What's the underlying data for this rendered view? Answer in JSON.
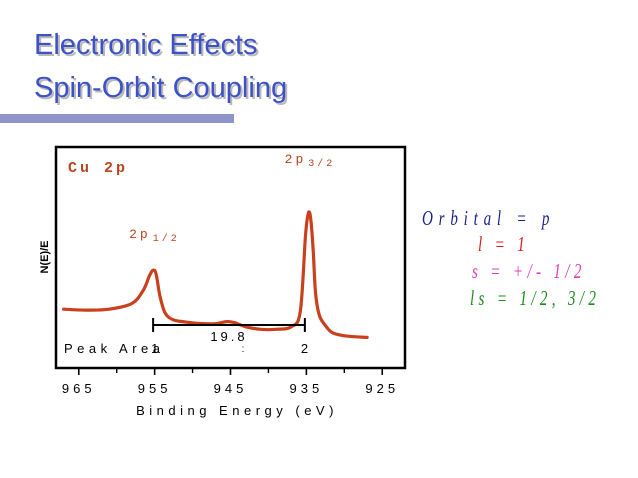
{
  "slide": {
    "title_line1": "Electronic Effects",
    "title_line2": "Spin-Orbit Coupling"
  },
  "notes": {
    "orbital": "Orbital = p",
    "l": "l = 1",
    "s": "s = +/- 1/2",
    "ls": "ls = 1/2, 3/2"
  },
  "colors": {
    "title": "#3d52c8",
    "trace": "#c8401c",
    "label": "#b8441e",
    "orbital": "#1a1f8c",
    "l": "#d81e1e",
    "s": "#d93cbf",
    "ls": "#1c8c1c"
  },
  "chart_data": {
    "type": "line",
    "title": "Cu 2p",
    "xlabel": "Binding Energy (eV)",
    "ylabel": "N(E)/E",
    "xlim": [
      968,
      922
    ],
    "x_reversed": true,
    "xticks": [
      965,
      955,
      945,
      935,
      925
    ],
    "xtick_labels": [
      "965",
      "955",
      "945",
      "935",
      "925"
    ],
    "ylim": [
      0,
      1
    ],
    "y_ticks_shown": false,
    "series": [
      {
        "x": [
          967,
          964,
          961,
          958,
          956.5,
          955.7,
          955.2,
          954.8,
          954.3,
          953.6,
          952.5,
          951,
          949,
          947,
          945.5,
          944.5,
          943,
          941,
          939,
          937,
          935.8,
          935.1,
          934.7,
          934.4,
          934.1,
          933.8,
          933.3,
          932.5,
          931.5,
          929.5,
          927
        ],
        "y": [
          0.179,
          0.174,
          0.179,
          0.212,
          0.289,
          0.372,
          0.406,
          0.383,
          0.256,
          0.155,
          0.117,
          0.105,
          0.096,
          0.095,
          0.107,
          0.101,
          0.077,
          0.062,
          0.062,
          0.077,
          0.166,
          0.615,
          0.741,
          0.695,
          0.52,
          0.276,
          0.145,
          0.085,
          0.041,
          0.022,
          0.015
        ]
      }
    ],
    "peak_labels": [
      {
        "text": "2p",
        "sub": "1/2",
        "x": 955.2
      },
      {
        "text": "2p",
        "sub": "3/2",
        "x": 934.7
      }
    ],
    "splitting": {
      "from": 955.2,
      "to": 935.2,
      "label": "19.8",
      "sep": ":"
    },
    "peak_area": {
      "label": "Peak Area",
      "values": [
        "1",
        "2"
      ]
    }
  }
}
